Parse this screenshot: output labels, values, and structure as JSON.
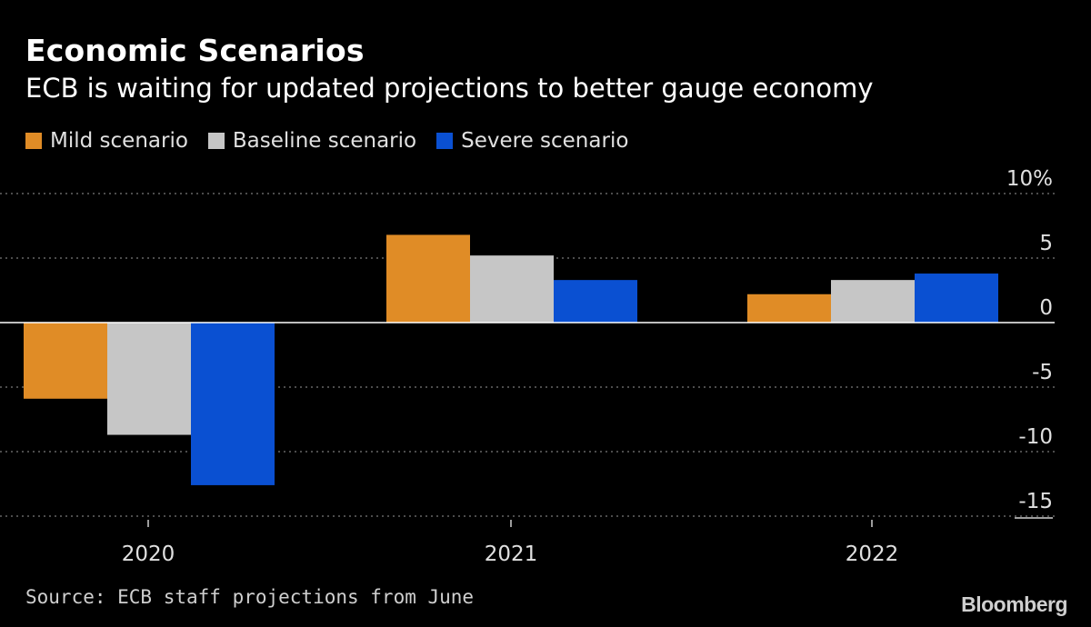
{
  "title": "Economic Scenarios",
  "subtitle": "ECB is waiting for updated projections to better gauge economy",
  "source": "Source: ECB staff projections from June",
  "brand": "Bloomberg",
  "chart_data": {
    "type": "bar",
    "categories": [
      "2020",
      "2021",
      "2022"
    ],
    "series": [
      {
        "name": "Mild scenario",
        "color": "#e08c26",
        "values": [
          -5.9,
          6.8,
          2.2
        ]
      },
      {
        "name": "Baseline scenario",
        "color": "#c6c6c6",
        "values": [
          -8.7,
          5.2,
          3.3
        ]
      },
      {
        "name": "Severe scenario",
        "color": "#0a50d2",
        "values": [
          -12.6,
          3.3,
          3.8
        ]
      }
    ],
    "ylim": [
      -15,
      10
    ],
    "yticks": [
      10,
      5,
      0,
      -5,
      -10,
      -15
    ],
    "ytick_labels": [
      "10%",
      "5",
      "0",
      "-5",
      "-10",
      "-15"
    ],
    "ylabel": "",
    "xlabel": "",
    "grid": true,
    "legend_position": "top-left"
  }
}
